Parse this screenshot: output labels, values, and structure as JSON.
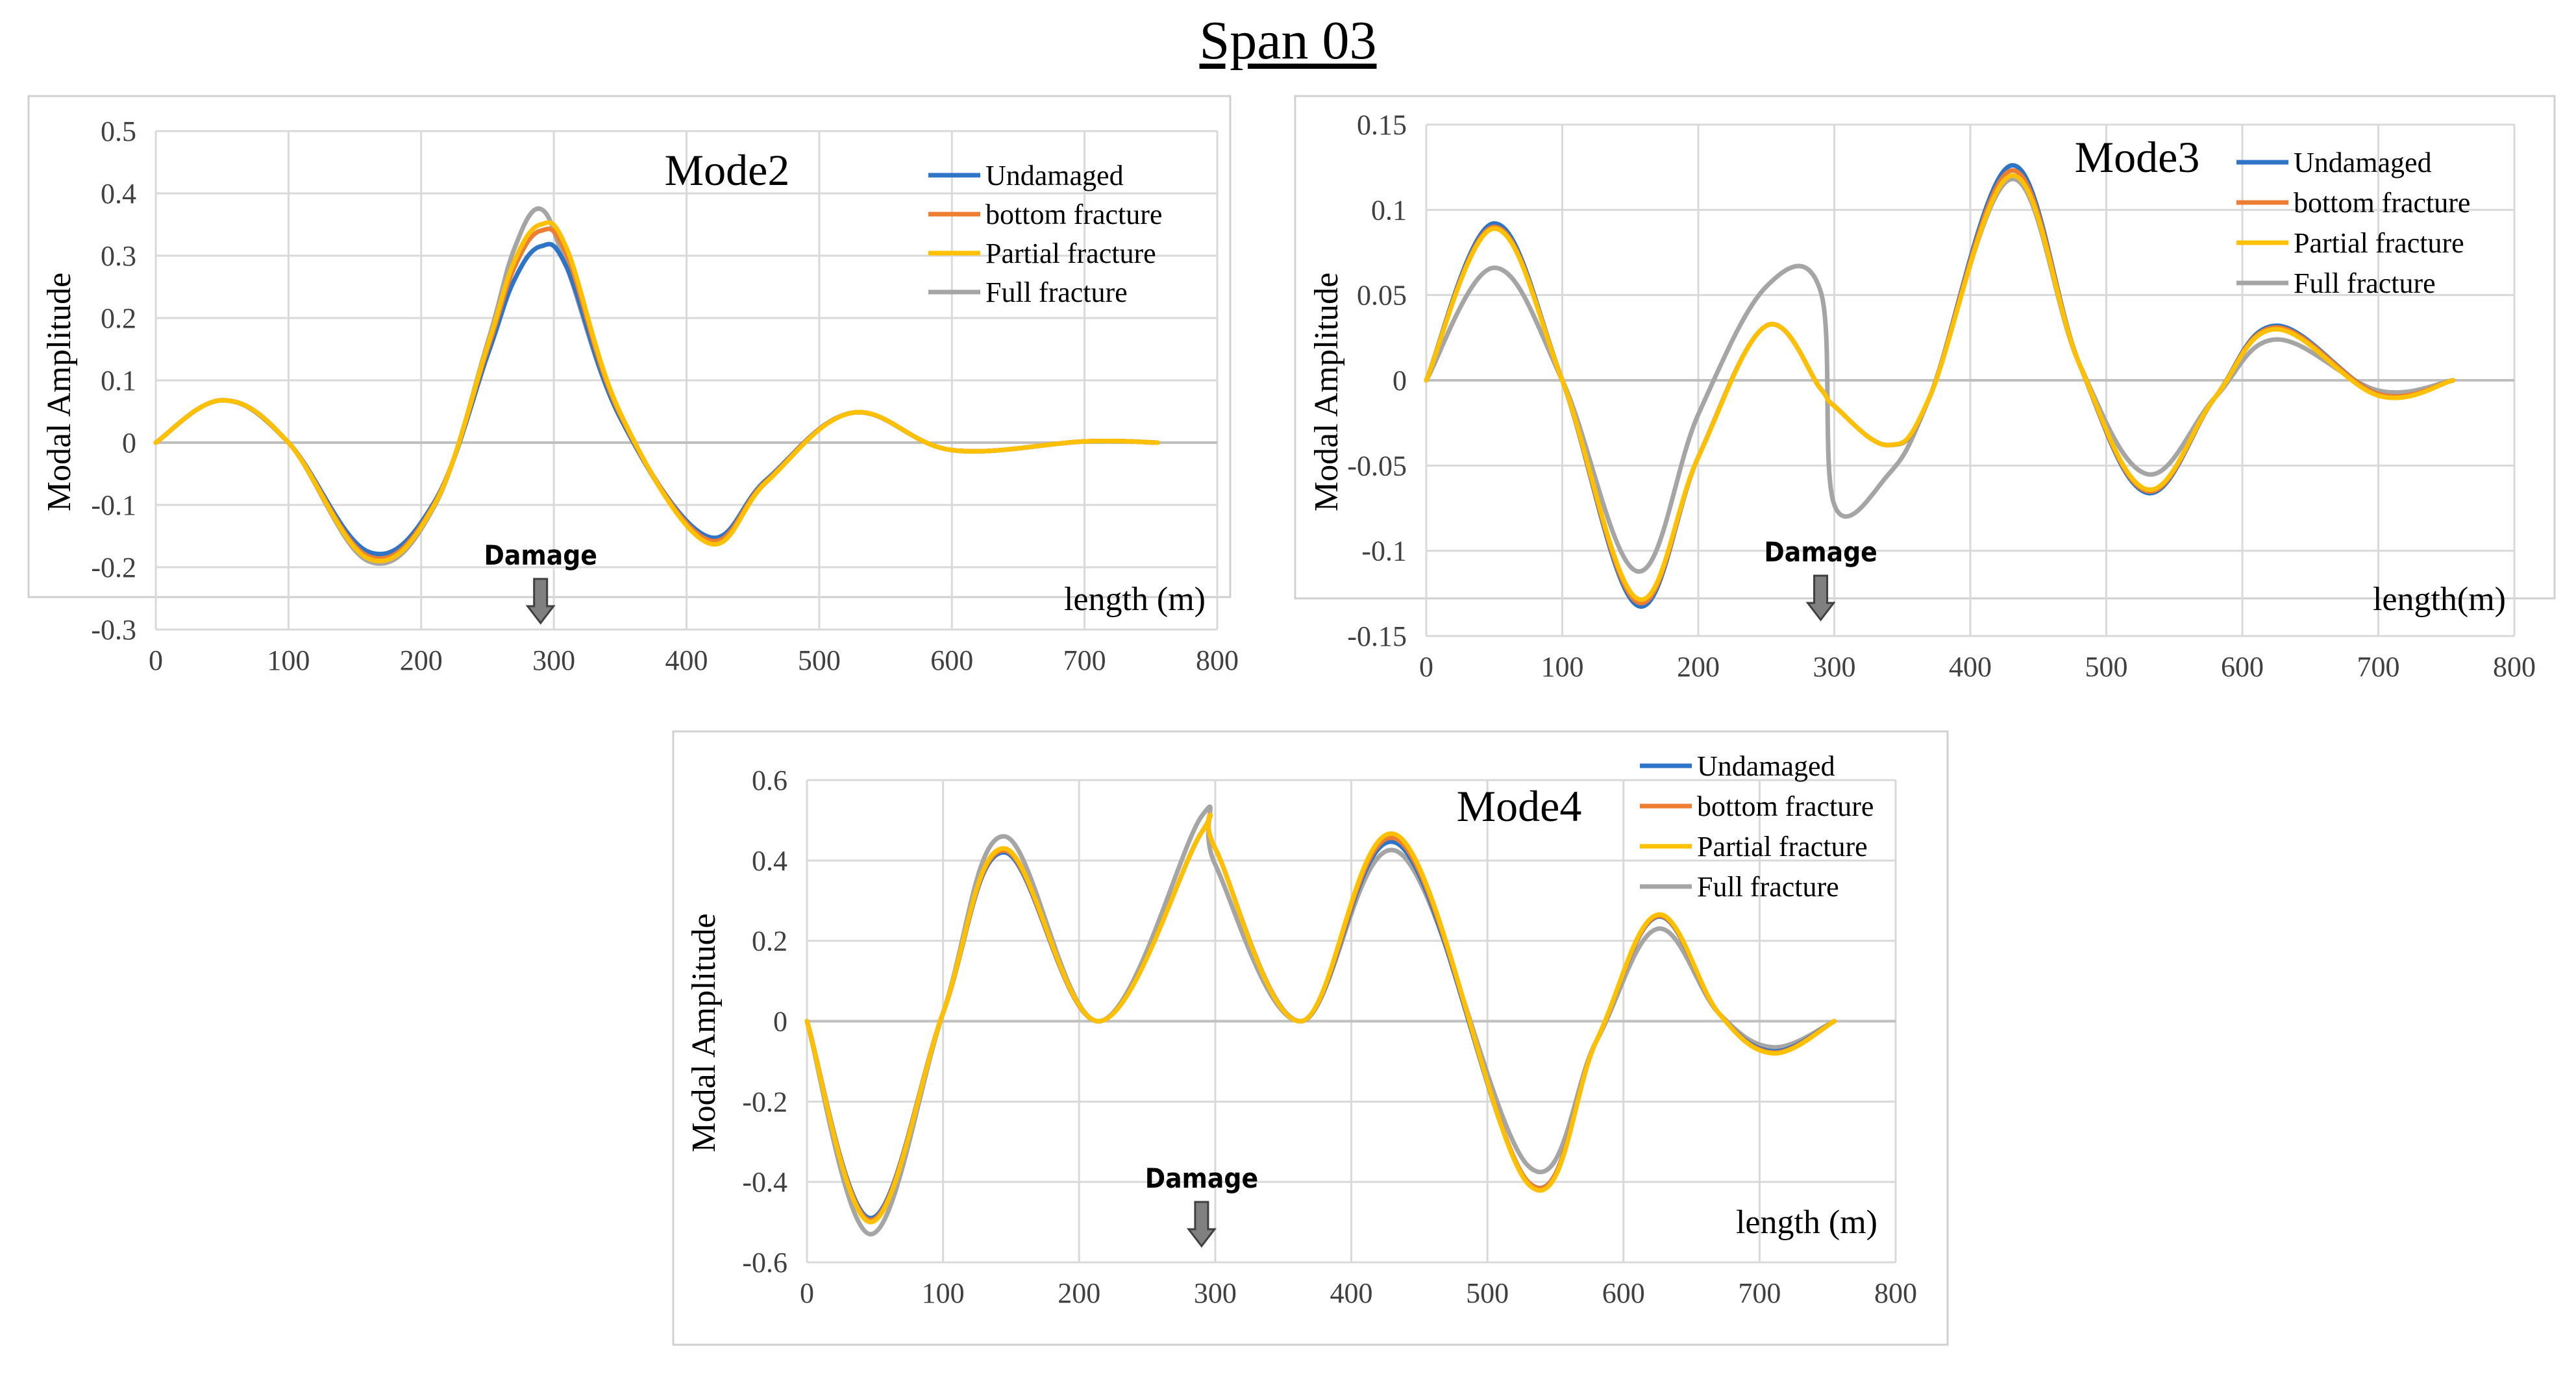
{
  "page": {
    "title": "Span 03"
  },
  "colors": {
    "Undamaged": "#2e75c7",
    "bottom fracture": "#ed7d31",
    "Partial fracture": "#ffc000",
    "Full fracture": "#a5a5a5"
  },
  "chart_data": [
    {
      "type": "line",
      "title": "Mode2",
      "xlabel": "length  (m)",
      "ylabel": "Modal Amplitude",
      "xlim": [
        0,
        800
      ],
      "ylim": [
        -0.3,
        0.5
      ],
      "xticks": [
        0,
        100,
        200,
        300,
        400,
        500,
        600,
        700,
        800
      ],
      "yticks": [
        -0.3,
        -0.2,
        -0.1,
        0,
        0.1,
        0.2,
        0.3,
        0.4,
        0.5
      ],
      "grid": true,
      "legend_position": "top-right",
      "annotation": {
        "text": "Damage",
        "x": 290
      },
      "x": [
        0,
        50,
        100,
        160,
        210,
        250,
        270,
        290,
        310,
        350,
        415,
        460,
        525,
        600,
        700,
        755
      ],
      "series": [
        {
          "name": "Undamaged",
          "values": [
            0,
            0.068,
            0,
            -0.175,
            -0.095,
            0.14,
            0.26,
            0.315,
            0.28,
            0.04,
            -0.15,
            -0.06,
            0.048,
            -0.012,
            0.002,
            0
          ]
        },
        {
          "name": "bottom fracture",
          "values": [
            0,
            0.068,
            0,
            -0.182,
            -0.098,
            0.15,
            0.28,
            0.34,
            0.3,
            0.045,
            -0.155,
            -0.062,
            0.048,
            -0.012,
            0.002,
            0
          ]
        },
        {
          "name": "Partial fracture",
          "values": [
            0,
            0.068,
            0,
            -0.186,
            -0.1,
            0.155,
            0.29,
            0.35,
            0.31,
            0.048,
            -0.16,
            -0.064,
            0.048,
            -0.012,
            0.002,
            0
          ]
        },
        {
          "name": "Full fracture",
          "values": [
            0,
            0.068,
            0,
            -0.19,
            -0.102,
            0.16,
            0.31,
            0.375,
            0.28,
            0.04,
            -0.155,
            -0.062,
            0.048,
            -0.012,
            0.002,
            0
          ]
        }
      ]
    },
    {
      "type": "line",
      "title": "Mode3",
      "xlabel": "length(m)",
      "ylabel": "Modal Amplitude",
      "xlim": [
        0,
        800
      ],
      "ylim": [
        -0.15,
        0.15
      ],
      "xticks": [
        0,
        100,
        200,
        300,
        400,
        500,
        600,
        700,
        800
      ],
      "yticks": [
        -0.15,
        -0.1,
        -0.05,
        0,
        0.05,
        0.1,
        0.15
      ],
      "grid": true,
      "legend_position": "top-right",
      "annotation": {
        "text": "Damage",
        "x": 290
      },
      "x": [
        0,
        50,
        100,
        155,
        200,
        250,
        290,
        300,
        340,
        370,
        430,
        480,
        530,
        580,
        625,
        700,
        755
      ],
      "series": [
        {
          "name": "Undamaged",
          "values": [
            0,
            0.092,
            0,
            -0.132,
            -0.045,
            0.032,
            -0.005,
            -0.015,
            -0.038,
            -0.01,
            0.126,
            0.01,
            -0.066,
            -0.01,
            0.032,
            -0.008,
            0
          ]
        },
        {
          "name": "bottom fracture",
          "values": [
            0,
            0.09,
            0,
            -0.13,
            -0.045,
            0.032,
            -0.005,
            -0.015,
            -0.038,
            -0.01,
            0.123,
            0.01,
            -0.065,
            -0.01,
            0.031,
            -0.008,
            0
          ]
        },
        {
          "name": "Partial fracture",
          "values": [
            0,
            0.089,
            0,
            -0.128,
            -0.045,
            0.032,
            -0.005,
            -0.015,
            -0.038,
            -0.01,
            0.12,
            0.01,
            -0.064,
            -0.01,
            0.03,
            -0.009,
            0
          ]
        },
        {
          "name": "Full fracture",
          "values": [
            0,
            0.066,
            0,
            -0.112,
            -0.02,
            0.055,
            0.052,
            -0.073,
            -0.055,
            -0.01,
            0.118,
            0.01,
            -0.055,
            -0.01,
            0.024,
            -0.006,
            0
          ]
        }
      ]
    },
    {
      "type": "line",
      "title": "Mode4",
      "xlabel": "length  (m)",
      "ylabel": "Modal Amplitude",
      "xlim": [
        0,
        800
      ],
      "ylim": [
        -0.6,
        0.6
      ],
      "xticks": [
        0,
        100,
        200,
        300,
        400,
        500,
        600,
        700,
        800
      ],
      "yticks": [
        -0.6,
        -0.4,
        -0.2,
        0,
        0.2,
        0.4,
        0.6
      ],
      "grid": true,
      "legend_position": "top-right",
      "annotation": {
        "text": "Damage",
        "x": 290
      },
      "x": [
        0,
        47,
        100,
        145,
        215,
        290,
        300,
        363,
        435,
        530,
        580,
        625,
        670,
        710,
        755
      ],
      "series": [
        {
          "name": "Undamaged",
          "values": [
            0,
            -0.49,
            0.02,
            0.42,
            0,
            0.47,
            0.43,
            0,
            0.44,
            -0.4,
            -0.05,
            0.26,
            0.02,
            -0.075,
            0
          ]
        },
        {
          "name": "bottom fracture",
          "values": [
            0,
            -0.495,
            0.02,
            0.425,
            0,
            0.47,
            0.43,
            0,
            0.45,
            -0.4,
            -0.05,
            0.262,
            0.02,
            -0.078,
            0
          ]
        },
        {
          "name": "Partial fracture",
          "values": [
            0,
            -0.5,
            0.02,
            0.43,
            0,
            0.47,
            0.43,
            0,
            0.46,
            -0.405,
            -0.05,
            0.265,
            0.02,
            -0.08,
            0
          ]
        },
        {
          "name": "Full fracture",
          "values": [
            0,
            -0.53,
            0.02,
            0.46,
            0,
            0.51,
            0.39,
            0,
            0.42,
            -0.36,
            -0.05,
            0.23,
            0.02,
            -0.065,
            0
          ]
        }
      ]
    }
  ]
}
